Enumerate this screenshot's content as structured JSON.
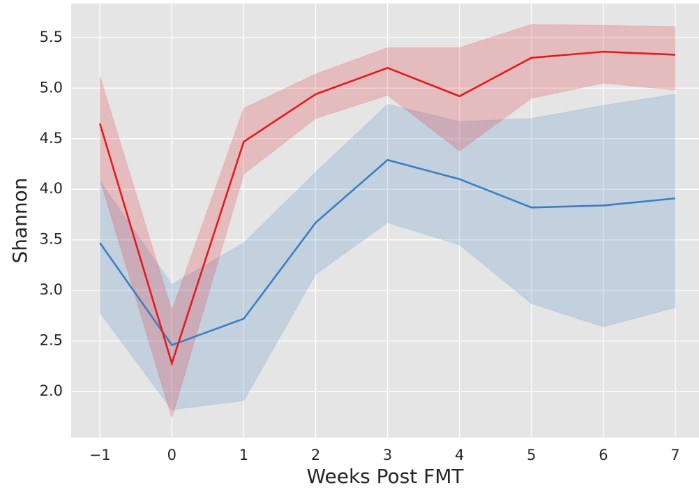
{
  "chart_data": {
    "type": "line",
    "x_label": "Weeks Post FMT",
    "y_label": "Shannon",
    "x": [
      -1,
      0,
      1,
      2,
      3,
      4,
      5,
      6,
      7
    ],
    "series": [
      {
        "color": "#3a7fc1",
        "values": [
          3.47,
          2.46,
          2.72,
          3.67,
          4.29,
          4.1,
          3.82,
          3.84,
          3.91
        ],
        "ci_lower": [
          2.78,
          1.82,
          1.91,
          3.16,
          3.67,
          3.45,
          2.87,
          2.64,
          2.83
        ],
        "ci_upper": [
          4.08,
          3.06,
          3.47,
          4.17,
          4.84,
          4.67,
          4.7,
          4.83,
          4.94
        ]
      },
      {
        "color": "#e41a1c",
        "values": [
          4.65,
          2.28,
          4.47,
          4.94,
          5.2,
          4.92,
          5.3,
          5.36,
          5.33
        ],
        "ci_lower": [
          4.1,
          1.74,
          4.15,
          4.7,
          4.93,
          4.38,
          4.9,
          5.05,
          4.98
        ],
        "ci_upper": [
          5.12,
          2.8,
          4.8,
          5.14,
          5.4,
          5.4,
          5.63,
          5.62,
          5.61
        ]
      }
    ],
    "xlim": [
      -1.4,
      7.33
    ],
    "ylim": [
      1.545,
      5.837
    ],
    "xticks": [
      {
        "value": -1,
        "label": "−1"
      },
      0,
      1,
      2,
      3,
      4,
      5,
      6,
      7
    ],
    "yticks": [
      {
        "value": 2,
        "label": "2.0"
      },
      2.5,
      {
        "value": 3,
        "label": "3.0"
      },
      3.5,
      {
        "value": 4,
        "label": "4.0"
      },
      4.5,
      {
        "value": 5,
        "label": "5.0"
      },
      5.5
    ],
    "grid": true
  }
}
